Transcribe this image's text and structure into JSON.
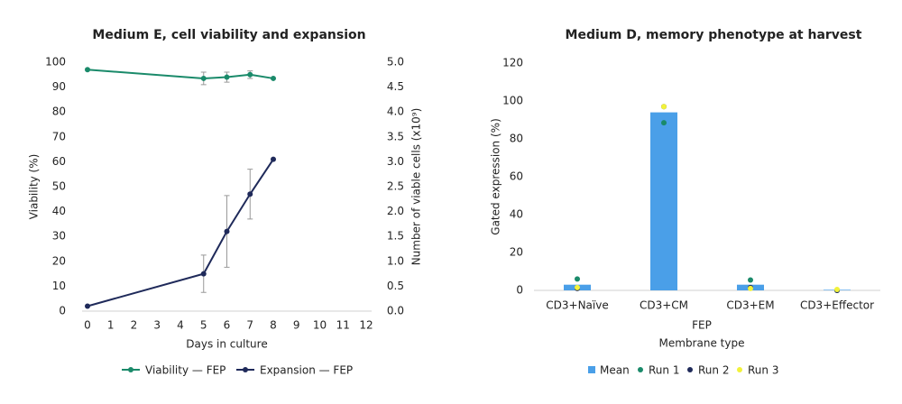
{
  "chart_data": [
    {
      "type": "line",
      "title": "Medium E, cell viability and expansion",
      "x_label": "Days in culture",
      "y_label": "Viability (%)",
      "y2_label": "Number of viable cells (x10⁹)",
      "x": [
        0,
        5,
        6,
        7,
        8
      ],
      "xlim": [
        0,
        12
      ],
      "xticks": [
        0,
        1,
        2,
        3,
        4,
        5,
        6,
        7,
        8,
        9,
        10,
        11,
        12
      ],
      "ylim": [
        0,
        100
      ],
      "yticks": [
        0,
        10,
        20,
        30,
        40,
        50,
        60,
        70,
        80,
        90,
        100
      ],
      "y2lim": [
        0,
        5
      ],
      "y2ticks": [
        {
          "value": 0,
          "label": "0.0"
        },
        {
          "value": 0.5,
          "label": "0.5"
        },
        {
          "value": 1,
          "label": "1.0"
        },
        {
          "value": 1.5,
          "label": "1.5"
        },
        {
          "value": 2,
          "label": "2.0"
        },
        {
          "value": 2.5,
          "label": "2.5"
        },
        {
          "value": 3,
          "label": "3.0"
        },
        {
          "value": 3.5,
          "label": "3.5"
        },
        {
          "value": 4,
          "label": "4.0"
        },
        {
          "value": 4.5,
          "label": "4.5"
        },
        {
          "value": 5,
          "label": "5.0"
        }
      ],
      "grid": false,
      "legend": "bottom",
      "series": [
        {
          "name": "Viability — FEP",
          "color": "#1a8a6a",
          "values": [
            97,
            93.5,
            94,
            95,
            93.5
          ],
          "errors": [
            null,
            2.5,
            2,
            1.5,
            null
          ]
        },
        {
          "name": "Expansion — FEP",
          "color": "#1f2a5a",
          "axis": "y2",
          "values": [
            0.1,
            0.75,
            1.6,
            2.35,
            3.05
          ],
          "errors": [
            null,
            0.375,
            0.72,
            0.5,
            null
          ]
        }
      ]
    },
    {
      "type": "bar",
      "title": "Medium D, memory phenotype at harvest",
      "x_label": "Membrane type",
      "group_label": "FEP",
      "y_label": "Gated expression (%)",
      "categories": [
        "CD3+Naïve",
        "CD3+CM",
        "CD3+EM",
        "CD3+Effector"
      ],
      "ylim": [
        0,
        120
      ],
      "yticks": [
        0,
        20,
        40,
        60,
        80,
        100,
        120
      ],
      "grid": false,
      "legend": "bottom",
      "series": [
        {
          "name": "Mean",
          "kind": "bar",
          "color": "#4a9fe8",
          "values": [
            3,
            94,
            3,
            0.3
          ]
        },
        {
          "name": "Run 1",
          "kind": "scatter",
          "color": "#1a8a6a",
          "values": [
            6,
            88.5,
            5.5,
            0
          ]
        },
        {
          "name": "Run 2",
          "kind": "scatter",
          "color": "#1f2a5a",
          "values": [
            1,
            97,
            1.5,
            0
          ]
        },
        {
          "name": "Run 3",
          "kind": "scatter",
          "color": "#f2f23a",
          "values": [
            1.5,
            97,
            1,
            0.5
          ]
        }
      ]
    }
  ]
}
